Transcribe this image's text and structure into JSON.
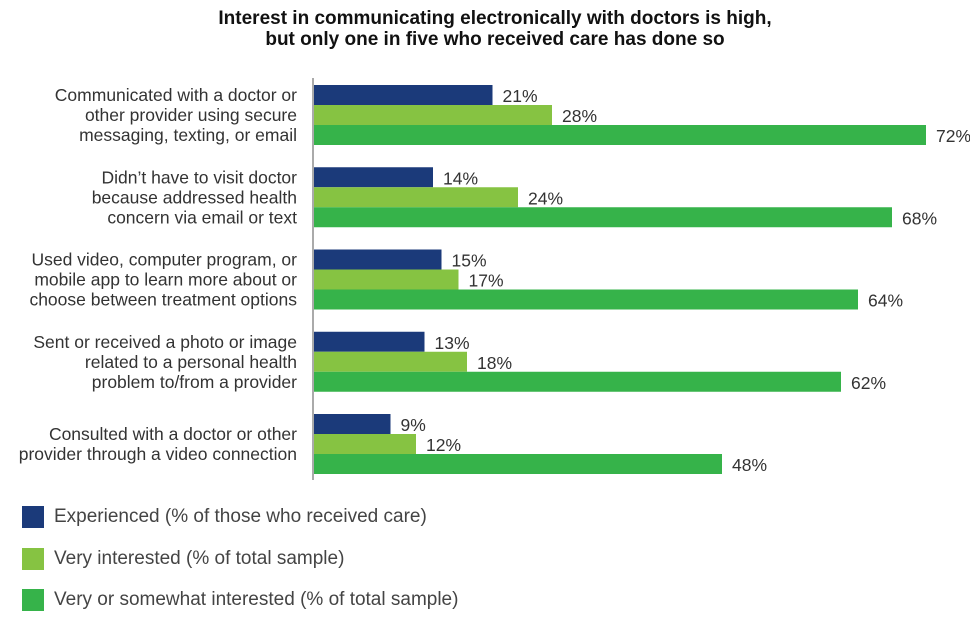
{
  "chart_data": {
    "type": "bar",
    "orientation": "horizontal",
    "title_lines": [
      "Interest in communicating electronically with doctors is high,",
      "but only one in five who received care has done so"
    ],
    "xlabel": "",
    "ylabel": "",
    "xlim": [
      0,
      100
    ],
    "grid": false,
    "legend_position": "bottom-left",
    "categories": [
      [
        "Communicated with a doctor or",
        "other provider using secure",
        "messaging, texting, or email"
      ],
      [
        "Didn’t have to visit doctor",
        "because addressed health",
        "concern via email or text"
      ],
      [
        "Used video, computer program, or",
        "mobile app to learn more about or",
        "choose between treatment options"
      ],
      [
        "Sent or received a photo or image",
        "related to a personal health",
        "problem to/from a provider"
      ],
      [
        "Consulted with a doctor or other",
        "provider through a video connection"
      ]
    ],
    "series": [
      {
        "name": "Experienced (% of those who received care)",
        "color": "#1b3a7a",
        "values": [
          21,
          14,
          15,
          13,
          9
        ]
      },
      {
        "name": "Very interested (% of total sample)",
        "color": "#86c342",
        "values": [
          28,
          24,
          17,
          18,
          12
        ]
      },
      {
        "name": "Very or somewhat interested (% of total sample)",
        "color": "#36b34a",
        "values": [
          72,
          68,
          64,
          62,
          48
        ]
      }
    ],
    "value_suffix": "%"
  }
}
